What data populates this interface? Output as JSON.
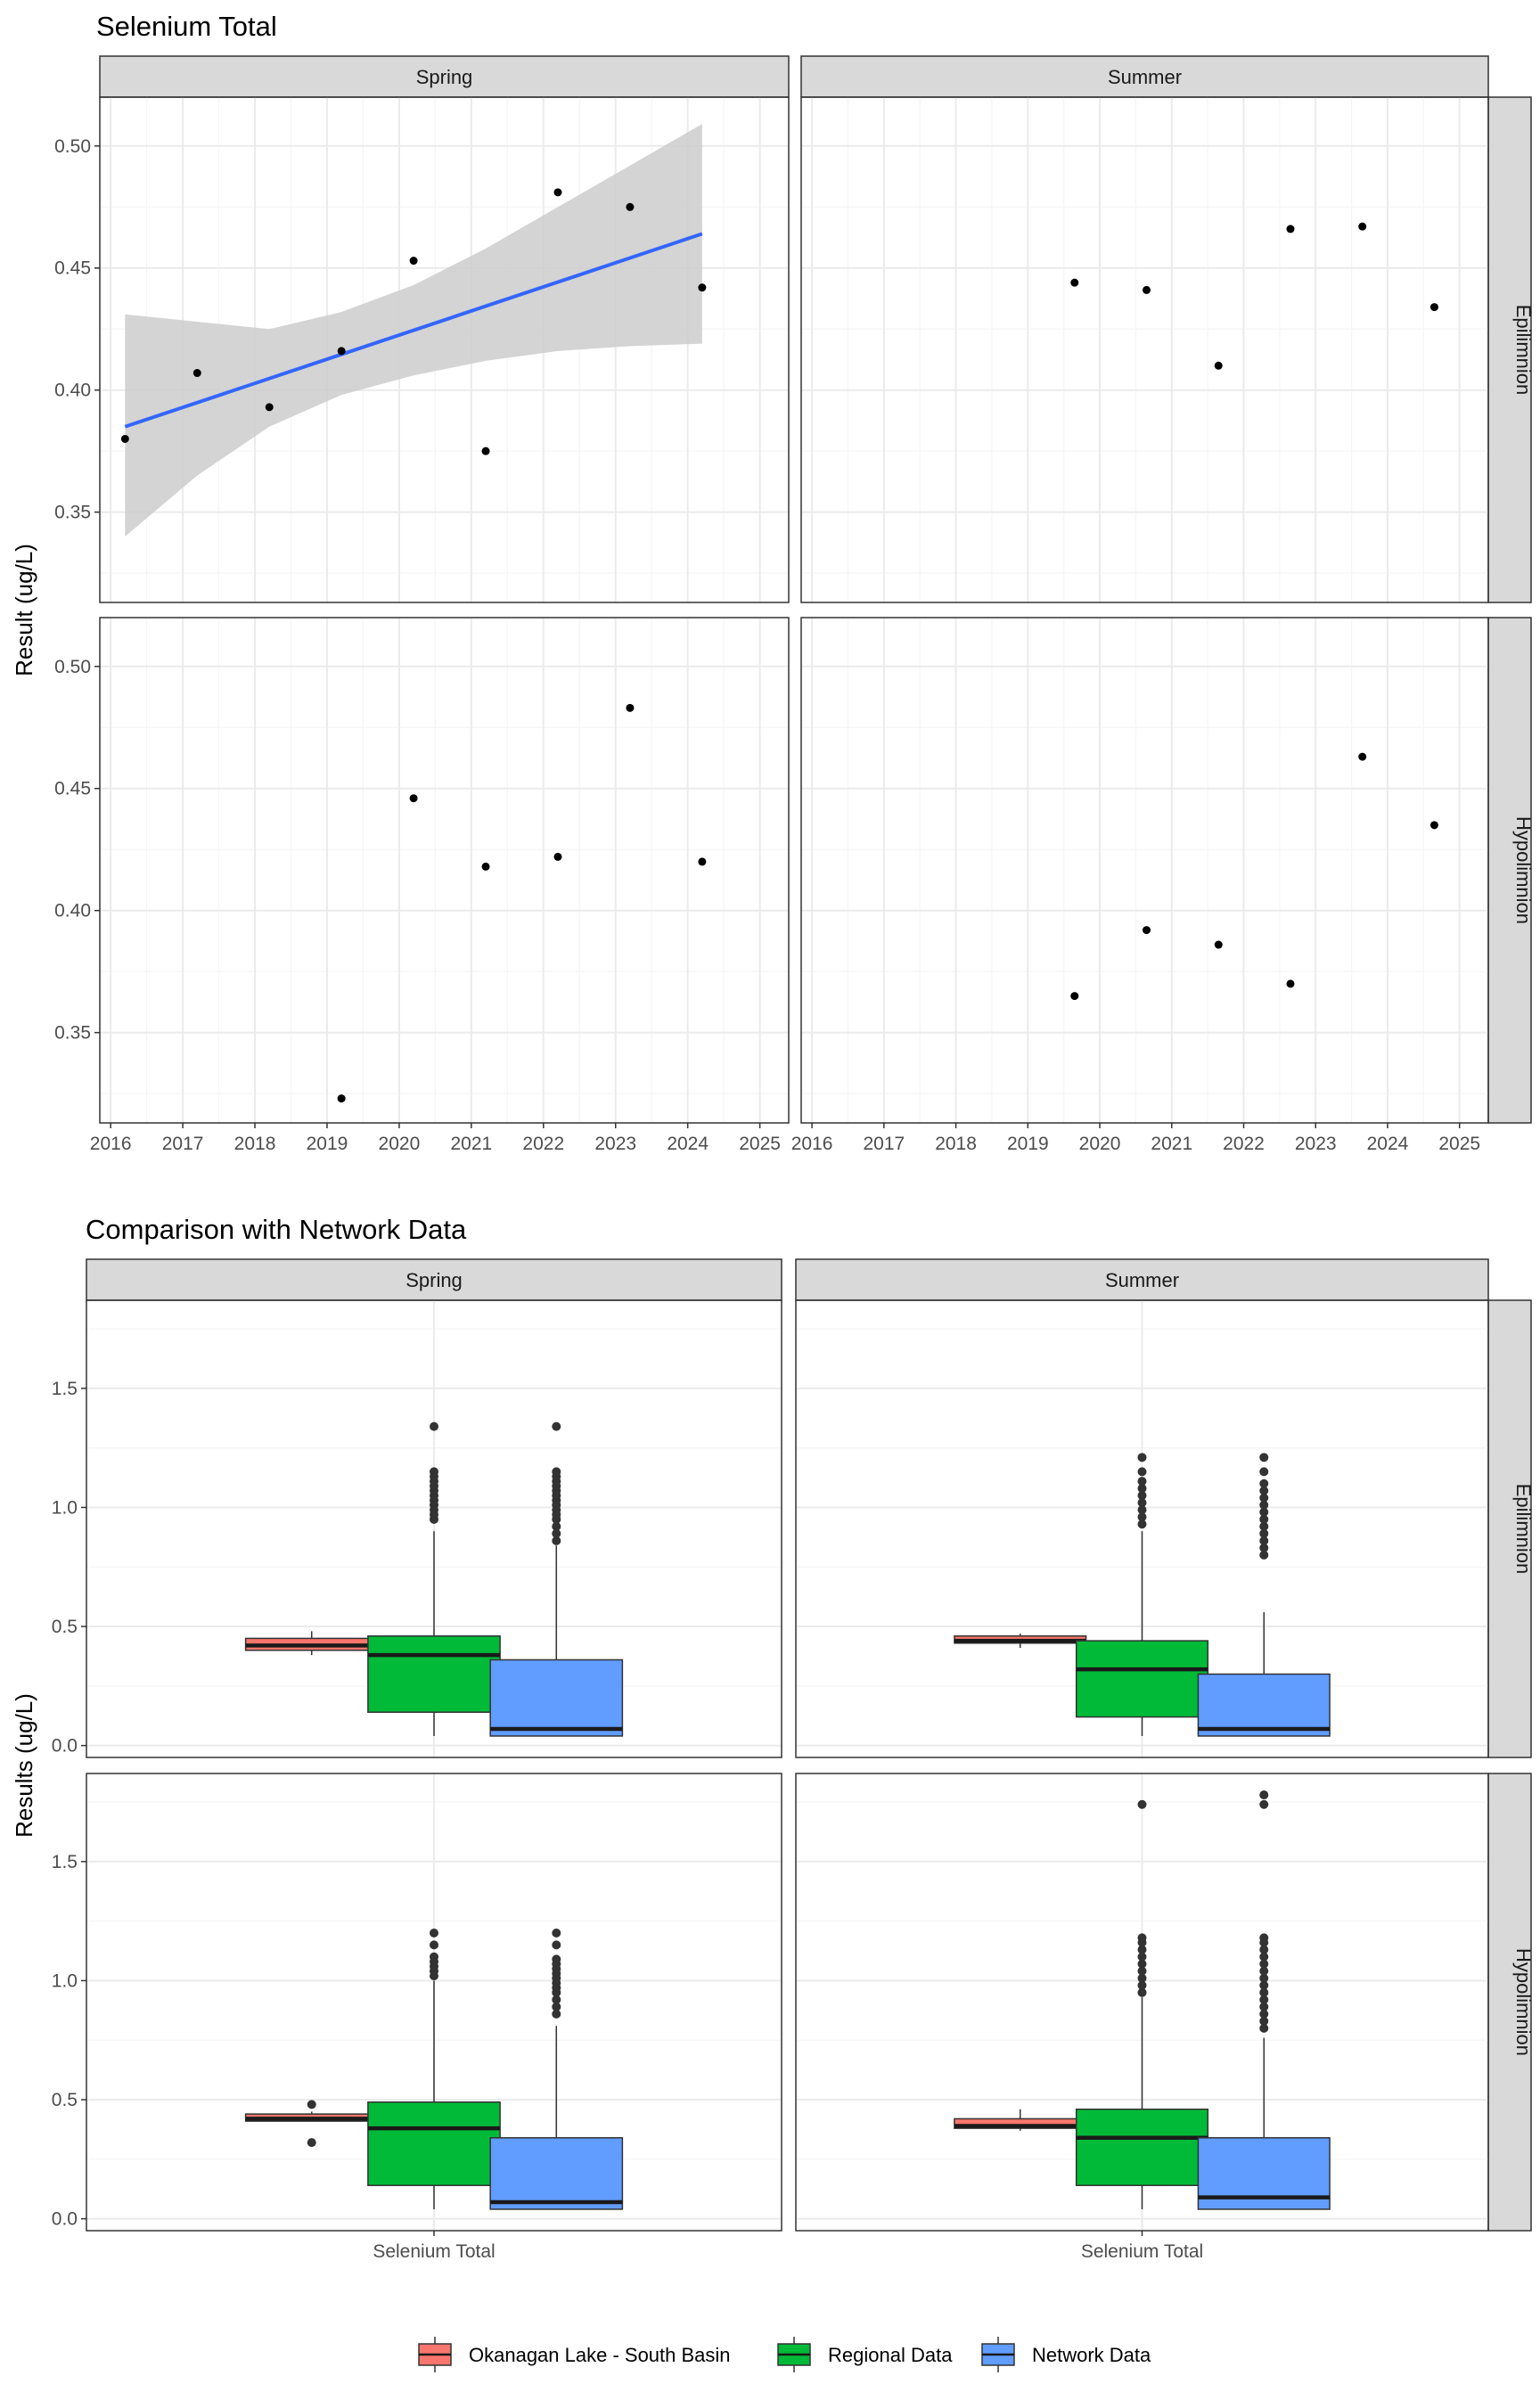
{
  "colors": {
    "strip_fill": "#d9d9d9",
    "panel_border": "#333333",
    "grid_major": "#ebebeb",
    "grid_minor": "#f5f5f5",
    "point": "#000000",
    "trend_line": "#3366ff",
    "confidence_band": "#cccccc",
    "outlier": "#333333",
    "median": "#1a1a1a",
    "whisker": "#333333"
  },
  "chart_data": [
    {
      "type": "scatter",
      "title": "Selenium Total",
      "xlabel": "",
      "ylabel": "Result (ug/L)",
      "xlim": [
        2015.85,
        2025.4
      ],
      "ylim": [
        0.313,
        0.52
      ],
      "x_ticks": [
        2016,
        2017,
        2018,
        2019,
        2020,
        2021,
        2022,
        2023,
        2024,
        2025
      ],
      "x_tick_labels": [
        "2016",
        "2017",
        "2018",
        "2019",
        "2020",
        "2021",
        "2022",
        "2023",
        "2024",
        "2025"
      ],
      "y_ticks": [
        0.35,
        0.4,
        0.45,
        0.5
      ],
      "y_tick_labels": [
        "0.35",
        "0.40",
        "0.45",
        "0.50"
      ],
      "columns": [
        "Spring",
        "Summer"
      ],
      "rows": [
        "Epilimnion",
        "Hypolimnion"
      ],
      "grid": true,
      "panels": [
        {
          "column": "Spring",
          "row": "Epilimnion",
          "points": [
            {
              "x": 2016.2,
              "y": 0.38
            },
            {
              "x": 2017.2,
              "y": 0.407
            },
            {
              "x": 2018.2,
              "y": 0.393
            },
            {
              "x": 2019.2,
              "y": 0.416
            },
            {
              "x": 2020.2,
              "y": 0.453
            },
            {
              "x": 2021.2,
              "y": 0.375
            },
            {
              "x": 2022.2,
              "y": 0.481
            },
            {
              "x": 2023.2,
              "y": 0.475
            },
            {
              "x": 2024.2,
              "y": 0.442
            }
          ],
          "trend": {
            "x": [
              2016.2,
              2024.2
            ],
            "y": [
              0.385,
              0.464
            ]
          },
          "band": {
            "x": [
              2016.2,
              2017.2,
              2018.2,
              2019.2,
              2020.2,
              2021.2,
              2022.2,
              2023.2,
              2024.2
            ],
            "lower": [
              0.34,
              0.365,
              0.385,
              0.398,
              0.406,
              0.412,
              0.416,
              0.418,
              0.419
            ],
            "upper": [
              0.431,
              0.428,
              0.425,
              0.432,
              0.443,
              0.458,
              0.475,
              0.492,
              0.509
            ]
          }
        },
        {
          "column": "Summer",
          "row": "Epilimnion",
          "points": [
            {
              "x": 2019.65,
              "y": 0.444
            },
            {
              "x": 2020.65,
              "y": 0.441
            },
            {
              "x": 2021.65,
              "y": 0.41
            },
            {
              "x": 2022.65,
              "y": 0.466
            },
            {
              "x": 2023.65,
              "y": 0.467
            },
            {
              "x": 2024.65,
              "y": 0.434
            }
          ]
        },
        {
          "column": "Spring",
          "row": "Hypolimnion",
          "points": [
            {
              "x": 2019.2,
              "y": 0.323
            },
            {
              "x": 2020.2,
              "y": 0.446
            },
            {
              "x": 2021.2,
              "y": 0.418
            },
            {
              "x": 2022.2,
              "y": 0.422
            },
            {
              "x": 2023.2,
              "y": 0.483
            },
            {
              "x": 2024.2,
              "y": 0.42
            }
          ]
        },
        {
          "column": "Summer",
          "row": "Hypolimnion",
          "points": [
            {
              "x": 2019.65,
              "y": 0.365
            },
            {
              "x": 2020.65,
              "y": 0.392
            },
            {
              "x": 2021.65,
              "y": 0.386
            },
            {
              "x": 2022.65,
              "y": 0.37
            },
            {
              "x": 2023.65,
              "y": 0.463
            },
            {
              "x": 2024.65,
              "y": 0.435
            }
          ]
        }
      ]
    },
    {
      "type": "box",
      "title": "Comparison with Network Data",
      "xlabel": "",
      "ylabel": "Results (ug/L)",
      "x_categories": [
        "Selenium Total"
      ],
      "ylim": [
        -0.05,
        1.87
      ],
      "y_ticks": [
        0.0,
        0.5,
        1.0,
        1.5
      ],
      "y_tick_labels": [
        "0.0",
        "0.5",
        "1.0",
        "1.5"
      ],
      "columns": [
        "Spring",
        "Summer"
      ],
      "rows": [
        "Epilimnion",
        "Hypolimnion"
      ],
      "grid": true,
      "legend": {
        "position": "bottom",
        "entries": [
          {
            "name": "Okanagan Lake - South Basin",
            "color": "#f8766d"
          },
          {
            "name": "Regional Data",
            "color": "#00ba38"
          },
          {
            "name": "Network Data",
            "color": "#619cff"
          }
        ]
      },
      "panels": [
        {
          "column": "Spring",
          "row": "Epilimnion",
          "boxes": [
            {
              "group": "Okanagan Lake - South Basin",
              "whisker_low": 0.38,
              "q1": 0.4,
              "median": 0.42,
              "q3": 0.45,
              "whisker_high": 0.48,
              "outliers": []
            },
            {
              "group": "Regional Data",
              "whisker_low": 0.04,
              "q1": 0.14,
              "median": 0.38,
              "q3": 0.46,
              "whisker_high": 0.9,
              "outliers": [
                0.95,
                0.97,
                0.99,
                1.01,
                1.03,
                1.05,
                1.07,
                1.09,
                1.11,
                1.13,
                1.15,
                1.34
              ]
            },
            {
              "group": "Network Data",
              "whisker_low": 0.04,
              "q1": 0.04,
              "median": 0.07,
              "q3": 0.36,
              "whisker_high": 0.84,
              "outliers": [
                0.86,
                0.89,
                0.92,
                0.95,
                0.97,
                0.99,
                1.01,
                1.03,
                1.05,
                1.07,
                1.09,
                1.11,
                1.13,
                1.15,
                1.34
              ]
            }
          ]
        },
        {
          "column": "Summer",
          "row": "Epilimnion",
          "boxes": [
            {
              "group": "Okanagan Lake - South Basin",
              "whisker_low": 0.41,
              "q1": 0.43,
              "median": 0.44,
              "q3": 0.46,
              "whisker_high": 0.47,
              "outliers": []
            },
            {
              "group": "Regional Data",
              "whisker_low": 0.04,
              "q1": 0.12,
              "median": 0.32,
              "q3": 0.44,
              "whisker_high": 0.9,
              "outliers": [
                0.93,
                0.96,
                0.99,
                1.02,
                1.05,
                1.08,
                1.11,
                1.15,
                1.21
              ]
            },
            {
              "group": "Network Data",
              "whisker_low": 0.04,
              "q1": 0.04,
              "median": 0.07,
              "q3": 0.3,
              "whisker_high": 0.56,
              "outliers": [
                0.8,
                0.83,
                0.86,
                0.89,
                0.92,
                0.95,
                0.98,
                1.01,
                1.04,
                1.07,
                1.1,
                1.15,
                1.21
              ]
            }
          ]
        },
        {
          "column": "Spring",
          "row": "Hypolimnion",
          "boxes": [
            {
              "group": "Okanagan Lake - South Basin",
              "whisker_low": 0.41,
              "q1": 0.41,
              "median": 0.42,
              "q3": 0.44,
              "whisker_high": 0.45,
              "outliers": [
                0.32,
                0.48
              ]
            },
            {
              "group": "Regional Data",
              "whisker_low": 0.04,
              "q1": 0.14,
              "median": 0.38,
              "q3": 0.49,
              "whisker_high": 1.0,
              "outliers": [
                1.02,
                1.04,
                1.06,
                1.08,
                1.1,
                1.15,
                1.2
              ]
            },
            {
              "group": "Network Data",
              "whisker_low": 0.04,
              "q1": 0.04,
              "median": 0.07,
              "q3": 0.34,
              "whisker_high": 0.81,
              "outliers": [
                0.86,
                0.89,
                0.92,
                0.95,
                0.97,
                0.99,
                1.01,
                1.03,
                1.05,
                1.07,
                1.09,
                1.15,
                1.2
              ]
            }
          ]
        },
        {
          "column": "Summer",
          "row": "Hypolimnion",
          "boxes": [
            {
              "group": "Okanagan Lake - South Basin",
              "whisker_low": 0.37,
              "q1": 0.38,
              "median": 0.39,
              "q3": 0.42,
              "whisker_high": 0.46,
              "outliers": []
            },
            {
              "group": "Regional Data",
              "whisker_low": 0.04,
              "q1": 0.14,
              "median": 0.34,
              "q3": 0.46,
              "whisker_high": 0.93,
              "outliers": [
                0.95,
                0.98,
                1.01,
                1.04,
                1.07,
                1.1,
                1.13,
                1.16,
                1.18,
                1.74
              ]
            },
            {
              "group": "Network Data",
              "whisker_low": 0.04,
              "q1": 0.04,
              "median": 0.09,
              "q3": 0.34,
              "whisker_high": 0.76,
              "outliers": [
                0.8,
                0.83,
                0.86,
                0.89,
                0.92,
                0.95,
                0.98,
                1.01,
                1.04,
                1.07,
                1.1,
                1.13,
                1.16,
                1.18,
                1.74,
                1.78
              ]
            }
          ]
        }
      ]
    }
  ]
}
